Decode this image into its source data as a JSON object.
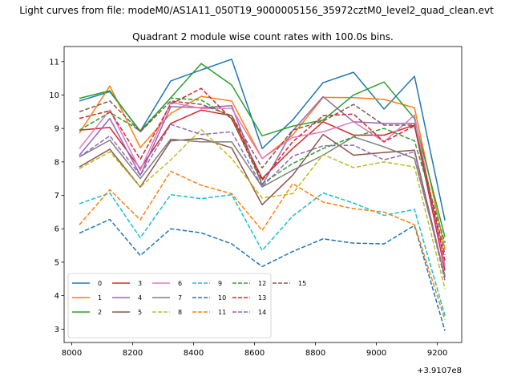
{
  "chart_data": {
    "type": "line",
    "suptitle": "Light curves from file: modeM0/AS1A11_050T19_9000005156_35972cztM0_level2_quad_clean.evt",
    "title": "Quadrant 2 module wise count rates with 100.0s bins.",
    "xlabel": "",
    "ylabel": "",
    "x_offset_label": "+3.9107e8",
    "x": [
      8025,
      8125,
      8225,
      8325,
      8425,
      8525,
      8625,
      8725,
      8825,
      8925,
      9025,
      9125,
      9225
    ],
    "xlim": [
      7975,
      9280
    ],
    "ylim": [
      2.6,
      11.45
    ],
    "xticks": [
      8000,
      8200,
      8400,
      8600,
      8800,
      9000,
      9200
    ],
    "xtick_labels": [
      "8000",
      "8200",
      "8400",
      "8600",
      "8800",
      "9000",
      "9200"
    ],
    "yticks": [
      3,
      4,
      5,
      6,
      7,
      8,
      9,
      10,
      11
    ],
    "ytick_labels": [
      "3",
      "4",
      "5",
      "6",
      "7",
      "8",
      "9",
      "10",
      "11"
    ],
    "grid": false,
    "legend_position": "lower-left",
    "series": [
      {
        "name": "0",
        "color": "#1f77b4",
        "dash": "solid",
        "values": [
          9.82,
          10.1,
          8.92,
          10.42,
          10.75,
          11.07,
          8.4,
          9.25,
          10.37,
          10.68,
          9.58,
          10.56,
          6.25
        ]
      },
      {
        "name": "1",
        "color": "#ff7f0e",
        "dash": "solid",
        "values": [
          8.86,
          10.27,
          8.43,
          9.45,
          9.96,
          9.82,
          8.1,
          8.8,
          9.93,
          9.92,
          9.87,
          9.62,
          5.38
        ]
      },
      {
        "name": "2",
        "color": "#2ca02c",
        "dash": "solid",
        "values": [
          9.9,
          10.13,
          8.9,
          9.92,
          10.94,
          10.3,
          8.78,
          9.07,
          9.25,
          10.0,
          10.39,
          9.3,
          5.75
        ]
      },
      {
        "name": "3",
        "color": "#d62728",
        "dash": "solid",
        "values": [
          8.95,
          9.03,
          7.8,
          9.15,
          9.55,
          9.38,
          7.5,
          8.4,
          9.2,
          8.8,
          8.8,
          9.1,
          4.75
        ]
      },
      {
        "name": "4",
        "color": "#9467bd",
        "dash": "solid",
        "values": [
          8.2,
          9.3,
          7.6,
          9.65,
          9.62,
          9.68,
          7.3,
          8.93,
          9.95,
          9.2,
          9.15,
          9.15,
          4.92
        ]
      },
      {
        "name": "5",
        "color": "#8c564b",
        "dash": "solid",
        "values": [
          7.85,
          8.38,
          7.25,
          8.63,
          8.7,
          8.42,
          6.72,
          7.6,
          8.82,
          8.2,
          8.28,
          8.35,
          4.55
        ]
      },
      {
        "name": "6",
        "color": "#e377c2",
        "dash": "solid",
        "values": [
          8.4,
          9.55,
          7.75,
          9.78,
          9.6,
          9.6,
          8.1,
          8.73,
          8.9,
          9.2,
          8.6,
          9.4,
          4.87
        ]
      },
      {
        "name": "7",
        "color": "#7f7f7f",
        "dash": "solid",
        "values": [
          8.15,
          8.65,
          7.5,
          8.68,
          8.6,
          8.6,
          7.25,
          7.75,
          8.2,
          8.75,
          8.45,
          8.1,
          4.6
        ]
      },
      {
        "name": "8",
        "color": "#bcbd22",
        "dash": "dashed",
        "values": [
          7.8,
          8.3,
          7.25,
          8.06,
          8.97,
          8.1,
          6.92,
          7.05,
          8.22,
          7.83,
          8.0,
          7.85,
          4.2
        ]
      },
      {
        "name": "9",
        "color": "#17becf",
        "dash": "dashed",
        "values": [
          6.75,
          7.07,
          5.73,
          7.02,
          6.9,
          7.02,
          5.35,
          6.38,
          7.07,
          6.77,
          6.4,
          6.58,
          3.4
        ]
      },
      {
        "name": "10",
        "color": "#1f77b4",
        "dash": "dashed",
        "values": [
          5.87,
          6.28,
          5.2,
          6.0,
          5.88,
          5.55,
          4.87,
          5.32,
          5.7,
          5.57,
          5.55,
          6.1,
          2.95
        ]
      },
      {
        "name": "11",
        "color": "#ff7f0e",
        "dash": "dashed",
        "values": [
          6.12,
          7.17,
          6.27,
          7.72,
          7.3,
          7.05,
          5.95,
          7.35,
          6.8,
          6.6,
          6.5,
          6.12,
          3.28
        ]
      },
      {
        "name": "12",
        "color": "#2ca02c",
        "dash": "dashed",
        "values": [
          8.95,
          9.48,
          8.93,
          9.91,
          9.85,
          9.3,
          7.35,
          7.95,
          8.4,
          8.75,
          9.0,
          8.63,
          5.58
        ]
      },
      {
        "name": "13",
        "color": "#d62728",
        "dash": "dashed",
        "values": [
          9.3,
          9.53,
          8.08,
          9.73,
          10.2,
          9.28,
          7.45,
          8.6,
          9.38,
          9.43,
          8.6,
          9.08,
          5.05
        ]
      },
      {
        "name": "14",
        "color": "#9467bd",
        "dash": "dashed",
        "values": [
          8.15,
          8.78,
          7.6,
          9.12,
          8.82,
          8.9,
          7.26,
          8.17,
          8.48,
          8.5,
          8.06,
          8.3,
          4.45
        ]
      },
      {
        "name": "15",
        "color": "#8c564b",
        "dash": "dashed",
        "values": [
          9.5,
          9.82,
          8.9,
          9.82,
          9.72,
          9.38,
          7.82,
          8.95,
          9.22,
          9.72,
          9.1,
          9.1,
          5.22
        ]
      }
    ]
  }
}
